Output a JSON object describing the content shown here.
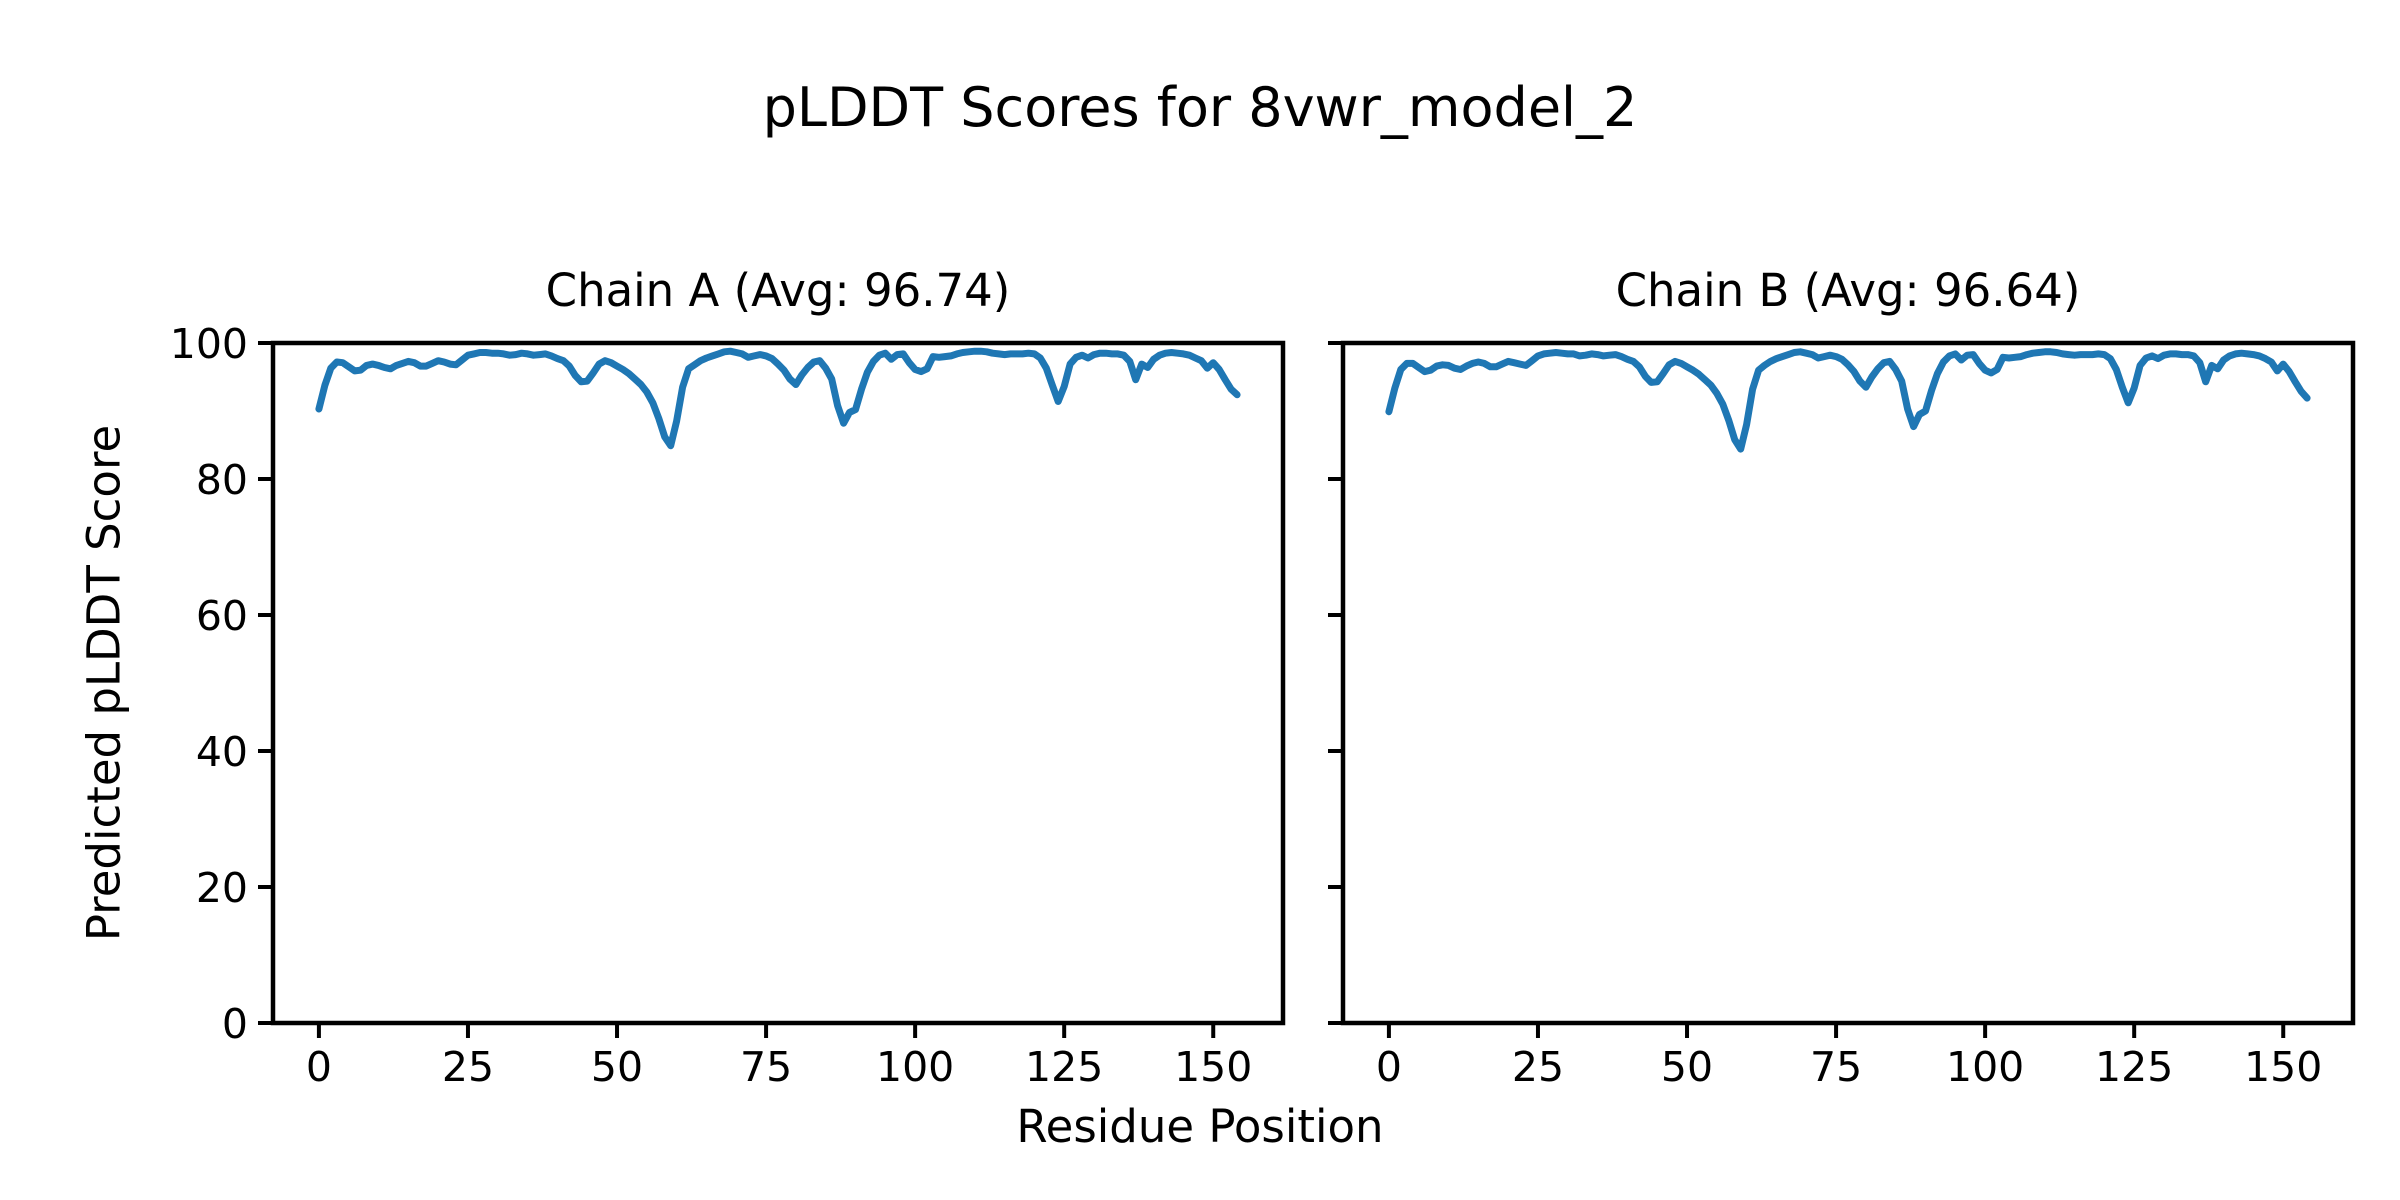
{
  "figure": {
    "suptitle": "pLDDT Scores for 8vwr_model_2",
    "xlabel": "Residue Position",
    "ylabel": "Predicted pLDDT Score",
    "background_color": "#ffffff",
    "text_color": "#000000",
    "line_color": "#1f77b4",
    "spine_color": "#000000"
  },
  "chart_data": [
    {
      "type": "line",
      "title": "Chain A (Avg: 96.74)",
      "chain": "A",
      "average": 96.74,
      "xlim": [
        -7.7,
        161.7
      ],
      "ylim": [
        0,
        100
      ],
      "xticks": [
        0,
        25,
        50,
        75,
        100,
        125,
        150
      ],
      "yticks": [
        0,
        20,
        40,
        60,
        80,
        100
      ],
      "show_ytick_labels": true,
      "grid": false,
      "x_start": 0,
      "values": [
        90.3,
        93.8,
        96.3,
        97.2,
        97.1,
        96.5,
        95.9,
        96.0,
        96.7,
        96.9,
        96.7,
        96.4,
        96.2,
        96.7,
        97.0,
        97.3,
        97.1,
        96.6,
        96.6,
        97.0,
        97.4,
        97.2,
        96.9,
        96.8,
        97.5,
        98.2,
        98.4,
        98.6,
        98.6,
        98.5,
        98.5,
        98.4,
        98.2,
        98.3,
        98.5,
        98.4,
        98.2,
        98.3,
        98.4,
        98.1,
        97.7,
        97.4,
        96.6,
        95.2,
        94.3,
        94.4,
        95.6,
        96.9,
        97.4,
        97.1,
        96.6,
        96.1,
        95.5,
        94.7,
        93.9,
        92.8,
        91.2,
        88.9,
        86.2,
        84.9,
        88.5,
        93.5,
        96.2,
        96.8,
        97.4,
        97.8,
        98.1,
        98.4,
        98.7,
        98.8,
        98.6,
        98.4,
        97.9,
        98.1,
        98.3,
        98.1,
        97.7,
        96.9,
        96.0,
        94.7,
        93.9,
        95.3,
        96.4,
        97.2,
        97.4,
        96.3,
        94.7,
        90.8,
        88.2,
        89.8,
        90.2,
        93.2,
        95.7,
        97.3,
        98.2,
        98.5,
        97.6,
        98.3,
        98.4,
        97.1,
        96.1,
        95.8,
        96.2,
        98.0,
        97.9,
        98.0,
        98.1,
        98.4,
        98.6,
        98.7,
        98.8,
        98.8,
        98.7,
        98.5,
        98.4,
        98.3,
        98.4,
        98.4,
        98.4,
        98.5,
        98.4,
        97.8,
        96.3,
        93.8,
        91.4,
        93.6,
        96.9,
        97.9,
        98.2,
        97.8,
        98.3,
        98.5,
        98.5,
        98.4,
        98.4,
        98.2,
        97.3,
        94.6,
        96.9,
        96.4,
        97.6,
        98.2,
        98.5,
        98.6,
        98.5,
        98.4,
        98.2,
        97.8,
        97.4,
        96.3,
        97.1,
        96.1,
        94.6,
        93.2,
        92.4
      ]
    },
    {
      "type": "line",
      "title": "Chain B (Avg: 96.64)",
      "chain": "B",
      "average": 96.64,
      "xlim": [
        -7.7,
        161.7
      ],
      "ylim": [
        0,
        100
      ],
      "xticks": [
        0,
        25,
        50,
        75,
        100,
        125,
        150
      ],
      "yticks": [
        0,
        20,
        40,
        60,
        80,
        100
      ],
      "show_ytick_labels": false,
      "grid": false,
      "x_start": 0,
      "values": [
        89.9,
        93.4,
        96.1,
        97.0,
        97.0,
        96.4,
        95.8,
        96.0,
        96.6,
        96.8,
        96.7,
        96.3,
        96.1,
        96.6,
        97.0,
        97.2,
        97.0,
        96.5,
        96.5,
        96.9,
        97.3,
        97.1,
        96.9,
        96.7,
        97.4,
        98.1,
        98.4,
        98.5,
        98.6,
        98.5,
        98.4,
        98.4,
        98.1,
        98.2,
        98.4,
        98.3,
        98.1,
        98.2,
        98.3,
        98.0,
        97.6,
        97.3,
        96.5,
        95.1,
        94.2,
        94.3,
        95.5,
        96.8,
        97.3,
        97.0,
        96.5,
        96.0,
        95.4,
        94.6,
        93.8,
        92.6,
        91.0,
        88.6,
        85.8,
        84.4,
        88.0,
        93.2,
        96.0,
        96.7,
        97.3,
        97.7,
        98.0,
        98.3,
        98.6,
        98.7,
        98.5,
        98.3,
        97.8,
        98.0,
        98.2,
        98.0,
        97.6,
        96.8,
        95.8,
        94.4,
        93.5,
        95.0,
        96.2,
        97.1,
        97.3,
        96.1,
        94.4,
        90.3,
        87.7,
        89.5,
        90.0,
        93.0,
        95.5,
        97.2,
        98.1,
        98.4,
        97.5,
        98.2,
        98.3,
        97.0,
        96.0,
        95.6,
        96.1,
        97.9,
        97.8,
        97.9,
        98.0,
        98.3,
        98.5,
        98.6,
        98.7,
        98.7,
        98.6,
        98.4,
        98.3,
        98.2,
        98.3,
        98.3,
        98.3,
        98.4,
        98.3,
        97.7,
        96.1,
        93.5,
        91.2,
        93.4,
        96.7,
        97.8,
        98.1,
        97.7,
        98.2,
        98.4,
        98.4,
        98.3,
        98.3,
        98.1,
        97.1,
        94.3,
        96.7,
        96.2,
        97.5,
        98.1,
        98.4,
        98.5,
        98.4,
        98.3,
        98.1,
        97.7,
        97.2,
        95.9,
        96.9,
        95.8,
        94.3,
        92.9,
        91.9
      ]
    }
  ]
}
